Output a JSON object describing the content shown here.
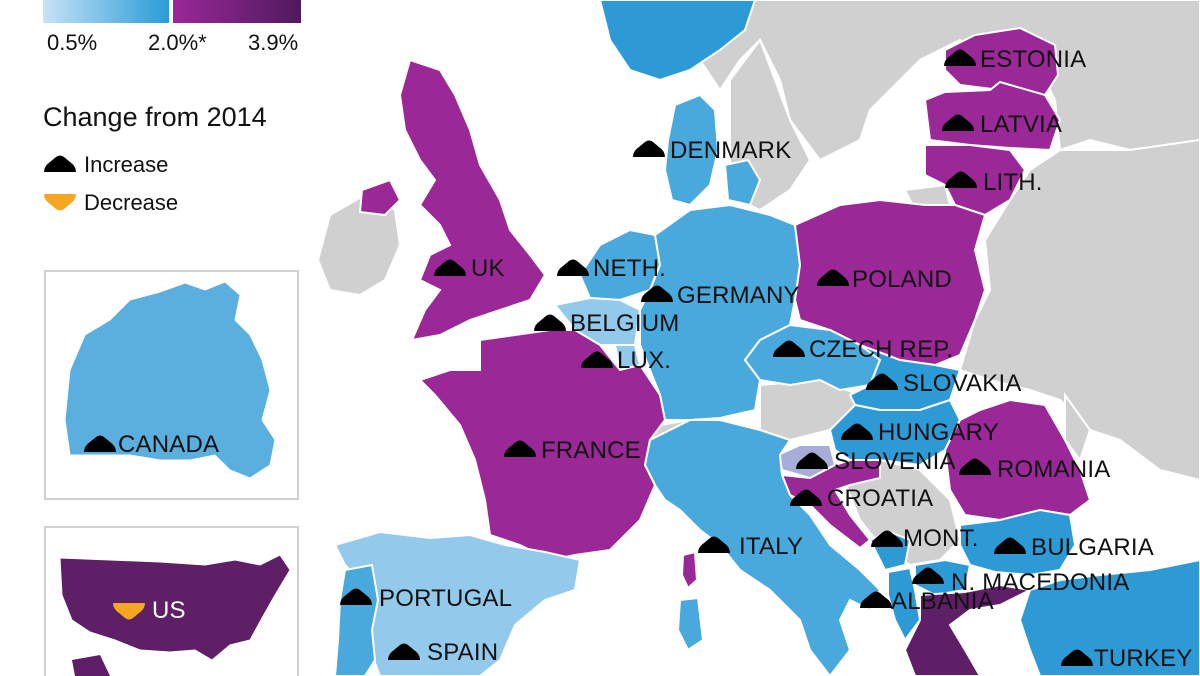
{
  "legend": {
    "scale_min": "0.5%",
    "scale_mid": "2.0%*",
    "scale_max": "3.9%",
    "title": "Change from 2014",
    "increase": "Increase",
    "decrease": "Decrease"
  },
  "colors": {
    "scale_light": "#c6e2f6",
    "scale_blue": "#2a9bd6",
    "scale_purple": "#8e2a96",
    "scale_dark": "#4f1a5f",
    "light_blue": "#93c9ea",
    "mid_blue": "#4aa9dc",
    "strong_blue": "#2e9ad5",
    "purple": "#9a2897",
    "dark_purple": "#5e1f66",
    "grey": "#cfcfcf",
    "sea": "#ffffff",
    "increase_icon": "#000000",
    "decrease_icon": "#f5a623"
  },
  "countries": {
    "estonia": "ESTONIA",
    "latvia": "LATVIA",
    "lithuania": "LITH.",
    "denmark": "DENMARK",
    "uk": "UK",
    "netherlands": "NETH.",
    "germany": "GERMANY",
    "belgium": "BELGIUM",
    "luxembourg": "LUX.",
    "poland": "POLAND",
    "czech": "CZECH REP.",
    "slovakia": "SLOVAKIA",
    "hungary": "HUNGARY",
    "slovenia": "SLOVENIA",
    "romania": "ROMANIA",
    "croatia": "CROATIA",
    "france": "FRANCE",
    "italy": "ITALY",
    "montenegro": "MONT.",
    "bulgaria": "BULGARIA",
    "north_macedonia": "N. MACEDONIA",
    "albania": "ALBANIA",
    "portugal": "PORTUGAL",
    "spain": "SPAIN",
    "turkey": "TURKEY",
    "canada": "CANADA",
    "us": "US"
  }
}
